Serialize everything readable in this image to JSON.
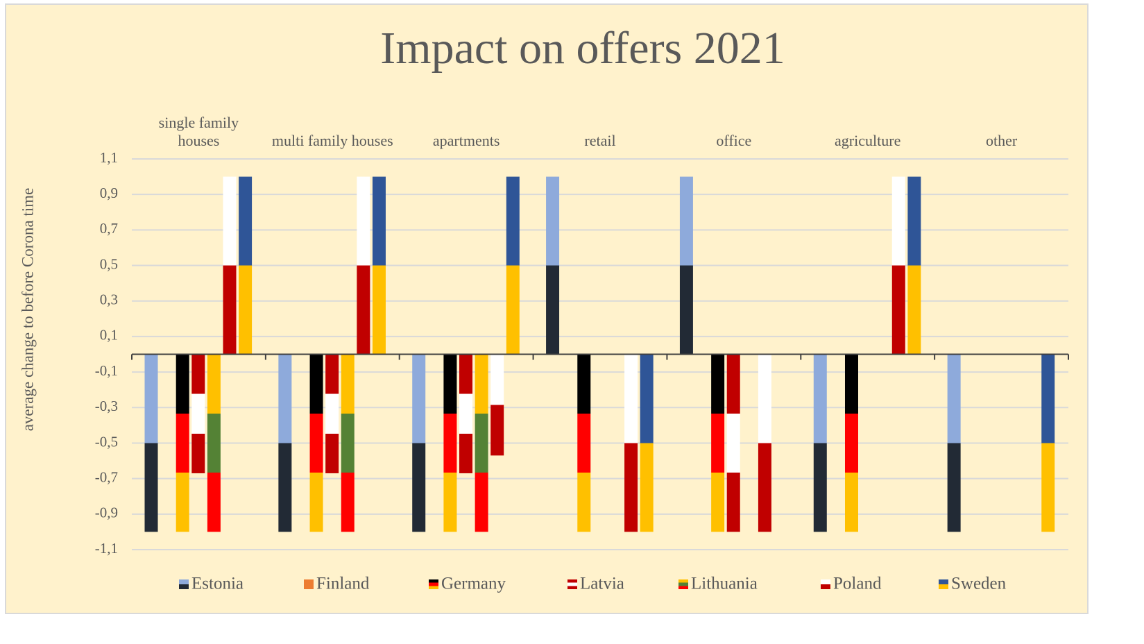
{
  "chart_data": {
    "type": "bar",
    "title": "Impact on offers 2021",
    "y_label": "average change to before Corona time",
    "categories": [
      "single family houses",
      "multi family houses",
      "apartments",
      "retail",
      "office",
      "agriculture",
      "other"
    ],
    "series": [
      {
        "name": "Estonia",
        "colors": [
          "#8eaadb",
          "#222a35"
        ],
        "values": [
          -1,
          -1,
          -1,
          1,
          1,
          -1,
          -1
        ]
      },
      {
        "name": "Finland",
        "colors": [
          "#ed7d31"
        ],
        "values": [
          0,
          0,
          0,
          0,
          0,
          0,
          0
        ]
      },
      {
        "name": "Germany",
        "colors": [
          "#000000",
          "#ff0000",
          "#ffc000"
        ],
        "values": [
          -1,
          -1,
          -1,
          -1,
          -1,
          -1,
          0
        ]
      },
      {
        "name": "Latvia",
        "colors": [
          "#c00000",
          "#ffffff",
          "#c00000"
        ],
        "values": [
          -0.67,
          -0.67,
          -0.67,
          0,
          -1,
          0,
          0
        ]
      },
      {
        "name": "Lithuania",
        "colors": [
          "#ffc000",
          "#548235",
          "#ff0000"
        ],
        "values": [
          -1,
          -1,
          -1,
          0,
          0,
          0,
          0
        ]
      },
      {
        "name": "Poland",
        "colors": [
          "#ffffff",
          "#c00000"
        ],
        "values": [
          1,
          1,
          -0.57,
          -1,
          -1,
          1,
          0
        ]
      },
      {
        "name": "Sweden",
        "colors": [
          "#2f5597",
          "#ffc000"
        ],
        "values": [
          1,
          1,
          1,
          -1,
          0,
          1,
          -1
        ]
      }
    ],
    "ylim": [
      -1.1,
      1.1
    ],
    "yticks": [
      {
        "value": 1.1,
        "label": "1,1"
      },
      {
        "value": 0.9,
        "label": "0,9"
      },
      {
        "value": 0.7,
        "label": "0,7"
      },
      {
        "value": 0.5,
        "label": "0,5"
      },
      {
        "value": 0.3,
        "label": "0,3"
      },
      {
        "value": 0.1,
        "label": "0,1"
      },
      {
        "value": -0.1,
        "label": "-0,1"
      },
      {
        "value": -0.3,
        "label": "-0,3"
      },
      {
        "value": -0.5,
        "label": "-0,5"
      },
      {
        "value": -0.7,
        "label": "-0,7"
      },
      {
        "value": -0.9,
        "label": "-0,9"
      },
      {
        "value": -1.1,
        "label": "-1,1"
      }
    ],
    "grid": true,
    "legend": "bottom"
  }
}
